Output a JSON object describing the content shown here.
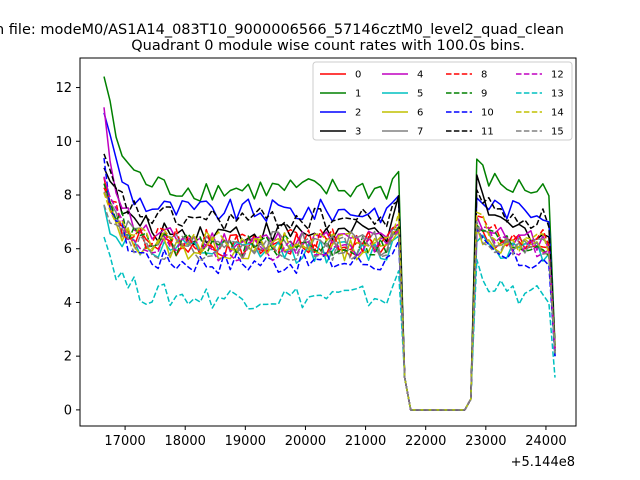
{
  "suptitle": "n file: modeM0/AS1A14_083T10_9000006566_57146cztM0_level2_quad_clean",
  "chart_data": {
    "type": "line",
    "title": "Quadrant 0 module wise count rates with 100.0s bins.",
    "xlabel": "",
    "ylabel": "",
    "x_offset_label": "+5.144e8",
    "xlim": [
      16250,
      24500
    ],
    "ylim": [
      -0.6,
      13.1
    ],
    "xticks": [
      17000,
      18000,
      19000,
      20000,
      21000,
      22000,
      23000,
      24000
    ],
    "yticks": [
      0,
      2,
      4,
      6,
      8,
      10,
      12
    ],
    "grid": false,
    "legend": {
      "placement": "top-right",
      "columns": 4
    },
    "x_note": "x values are seconds relative to offset 5.144e8",
    "series": [
      {
        "name": "0",
        "color": "#ff0000",
        "dash": "solid",
        "level": 6.1,
        "start": 8.6,
        "gap_end": 7.0,
        "end": 2.3
      },
      {
        "name": "1",
        "color": "#008000",
        "dash": "solid",
        "level": 8.2,
        "start": 12.5,
        "gap_end": 9.1,
        "end": 2.4
      },
      {
        "name": "2",
        "color": "#0000ff",
        "dash": "solid",
        "level": 7.4,
        "start": 11.3,
        "gap_end": 8.0,
        "end": 2.2
      },
      {
        "name": "3",
        "color": "#000000",
        "dash": "solid",
        "level": 6.6,
        "start": 9.4,
        "gap_end": 8.4,
        "end": 2.1
      },
      {
        "name": "4",
        "color": "#c000c0",
        "dash": "solid",
        "level": 6.3,
        "start": 10.9,
        "gap_end": 7.2,
        "end": 2.0
      },
      {
        "name": "5",
        "color": "#00c0c0",
        "dash": "solid",
        "level": 5.9,
        "start": 7.4,
        "gap_end": 6.6,
        "end": 2.0
      },
      {
        "name": "6",
        "color": "#c0c000",
        "dash": "solid",
        "level": 6.0,
        "start": 8.0,
        "gap_end": 6.7,
        "end": 2.1
      },
      {
        "name": "7",
        "color": "#808080",
        "dash": "solid",
        "level": 6.2,
        "start": 8.2,
        "gap_end": 6.9,
        "end": 2.2
      },
      {
        "name": "8",
        "color": "#ff0000",
        "dash": "dashed",
        "level": 6.3,
        "start": 8.5,
        "gap_end": 7.0,
        "end": 2.3
      },
      {
        "name": "9",
        "color": "#008000",
        "dash": "dashed",
        "level": 6.1,
        "start": 8.8,
        "gap_end": 7.0,
        "end": 2.2
      },
      {
        "name": "10",
        "color": "#0000ff",
        "dash": "dashed",
        "level": 5.5,
        "start": 9.0,
        "gap_end": 6.4,
        "end": 2.0
      },
      {
        "name": "11",
        "color": "#000000",
        "dash": "dashed",
        "level": 7.1,
        "start": 9.3,
        "gap_end": 8.2,
        "end": 2.4
      },
      {
        "name": "12",
        "color": "#c000c0",
        "dash": "dashed",
        "level": 6.0,
        "start": 8.6,
        "gap_end": 6.9,
        "end": 2.1
      },
      {
        "name": "13",
        "color": "#00c0c0",
        "dash": "dashed",
        "level": 4.2,
        "start": 6.5,
        "gap_end": 5.5,
        "end": 1.2
      },
      {
        "name": "14",
        "color": "#c0c000",
        "dash": "dashed",
        "level": 6.2,
        "start": 8.3,
        "gap_end": 7.6,
        "end": 2.3
      },
      {
        "name": "15",
        "color": "#808080",
        "dash": "dashed",
        "level": 6.0,
        "start": 8.0,
        "gap_end": 6.8,
        "end": 2.1
      }
    ]
  }
}
